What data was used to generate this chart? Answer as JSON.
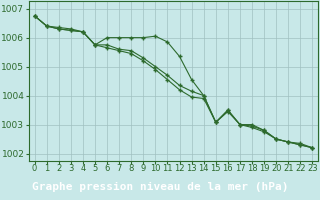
{
  "x": [
    0,
    1,
    2,
    3,
    4,
    5,
    6,
    7,
    8,
    9,
    10,
    11,
    12,
    13,
    14,
    15,
    16,
    17,
    18,
    19,
    20,
    21,
    22,
    23
  ],
  "series1": [
    1006.75,
    1006.4,
    1006.35,
    1006.3,
    1006.2,
    1005.75,
    1006.0,
    1006.0,
    1006.0,
    1006.0,
    1006.05,
    1005.85,
    1005.35,
    1004.55,
    1004.0,
    1003.08,
    1003.5,
    1003.0,
    1003.0,
    1002.8,
    1002.5,
    1002.4,
    1002.3,
    1002.2
  ],
  "series2": [
    1006.75,
    1006.4,
    1006.3,
    1006.25,
    1006.2,
    1005.75,
    1005.75,
    1005.6,
    1005.55,
    1005.3,
    1005.0,
    1004.7,
    1004.35,
    1004.15,
    1004.0,
    1003.08,
    1003.5,
    1003.0,
    1002.95,
    1002.8,
    1002.5,
    1002.4,
    1002.35,
    1002.2
  ],
  "series3": [
    1006.75,
    1006.4,
    1006.3,
    1006.25,
    1006.2,
    1005.75,
    1005.65,
    1005.55,
    1005.45,
    1005.2,
    1004.9,
    1004.55,
    1004.2,
    1003.95,
    1003.9,
    1003.08,
    1003.45,
    1003.0,
    1002.9,
    1002.75,
    1002.5,
    1002.4,
    1002.3,
    1002.2
  ],
  "line_color": "#2d6a2d",
  "bg_color": "#c8e8e8",
  "grid_color": "#a0c0c0",
  "xlabel": "Graphe pression niveau de la mer (hPa)",
  "xlabel_bg": "#1a5c1a",
  "xlabel_color": "#ffffff",
  "ylim_min": 1001.75,
  "ylim_max": 1007.25,
  "yticks": [
    1002,
    1003,
    1004,
    1005,
    1006,
    1007
  ],
  "tick_fontsize": 6.5,
  "xlabel_fontsize": 8
}
